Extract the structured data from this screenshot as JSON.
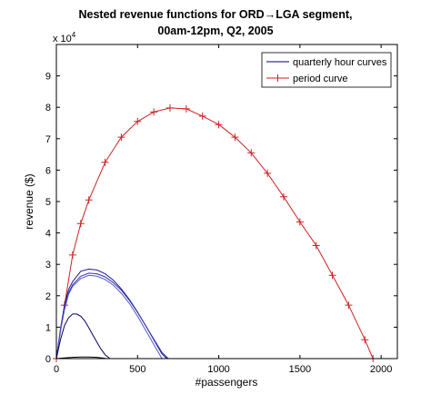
{
  "chart_data": {
    "type": "line",
    "title": [
      "Nested revenue functions for ORD→LGA segment,",
      "00am-12pm, Q2, 2005"
    ],
    "xlabel": "#passengers",
    "ylabel": "revenue ($)",
    "y_multiplier": "x 10",
    "y_multiplier_exp": "4",
    "xlim": [
      0,
      2100
    ],
    "ylim": [
      0,
      10
    ],
    "xticks": [
      0,
      500,
      1000,
      1500,
      2000
    ],
    "yticks": [
      0,
      1,
      2,
      3,
      4,
      5,
      6,
      7,
      8,
      9
    ],
    "grid": false,
    "legend": {
      "position": "top-right",
      "entries": [
        {
          "label": "quarterly hour curves",
          "color": "#000066",
          "marker": "none"
        },
        {
          "label": "period curve",
          "color": "#cc2222",
          "marker": "+"
        }
      ]
    },
    "series": [
      {
        "color": "#cc2222",
        "marker": "+",
        "x": [
          0,
          50,
          100,
          150,
          200,
          300,
          400,
          500,
          600,
          700,
          800,
          900,
          1000,
          1100,
          1200,
          1300,
          1400,
          1500,
          1600,
          1700,
          1800,
          1900,
          1950
        ],
        "y": [
          0,
          1.7,
          3.3,
          4.3,
          5.05,
          6.25,
          7.05,
          7.55,
          7.85,
          7.98,
          7.95,
          7.72,
          7.45,
          7.05,
          6.55,
          5.9,
          5.15,
          4.35,
          3.6,
          2.65,
          1.7,
          0.6,
          0
        ]
      },
      {
        "color": "#1a1a99",
        "marker": "none",
        "x": [
          0,
          25,
          50,
          75,
          100,
          150,
          200,
          250,
          300,
          350,
          400,
          450,
          500,
          550,
          600,
          650,
          680
        ],
        "y": [
          0,
          0.95,
          1.7,
          2.2,
          2.45,
          2.78,
          2.85,
          2.82,
          2.7,
          2.5,
          2.22,
          1.88,
          1.48,
          1.05,
          0.6,
          0.15,
          0
        ]
      },
      {
        "color": "#3333aa",
        "marker": "none",
        "x": [
          0,
          25,
          50,
          75,
          100,
          150,
          200,
          250,
          300,
          350,
          400,
          450,
          500,
          550,
          600,
          650,
          690
        ],
        "y": [
          0,
          0.9,
          1.6,
          2.1,
          2.35,
          2.62,
          2.72,
          2.7,
          2.6,
          2.42,
          2.18,
          1.85,
          1.47,
          1.05,
          0.62,
          0.2,
          0
        ]
      },
      {
        "color": "#5555cc",
        "marker": "none",
        "x": [
          0,
          25,
          50,
          75,
          100,
          150,
          200,
          250,
          300,
          350,
          400,
          450,
          500,
          550,
          600,
          650
        ],
        "y": [
          0,
          0.88,
          1.55,
          2.05,
          2.3,
          2.55,
          2.65,
          2.62,
          2.52,
          2.34,
          2.08,
          1.75,
          1.35,
          0.9,
          0.45,
          0
        ]
      },
      {
        "color": "#000066",
        "marker": "none",
        "x": [
          0,
          25,
          50,
          75,
          100,
          125,
          150,
          175,
          200,
          225,
          250,
          275,
          300,
          330
        ],
        "y": [
          0,
          0.6,
          1.05,
          1.3,
          1.42,
          1.42,
          1.35,
          1.2,
          0.98,
          0.75,
          0.52,
          0.3,
          0.12,
          0
        ]
      },
      {
        "color": "#000000",
        "marker": "none",
        "x": [
          0,
          50,
          100,
          150,
          200,
          250,
          280,
          310
        ],
        "y": [
          0,
          0.02,
          0.04,
          0.05,
          0.05,
          0.04,
          0.02,
          0
        ]
      }
    ]
  }
}
